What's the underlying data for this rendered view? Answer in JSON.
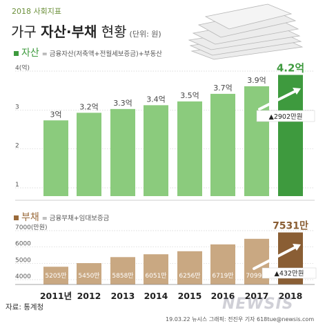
{
  "header": {
    "tag": "2018 사회지표",
    "title_prefix": "가구 ",
    "title_main": "자산·부채",
    "title_suffix": " 현황",
    "unit": "(단위: 원)"
  },
  "chart_data": [
    {
      "type": "bar",
      "section_label": "자산",
      "section_desc": "= 금융자산(저축액+전월세보증금)+부동산",
      "categories": [
        "2011년",
        "2012",
        "2013",
        "2014",
        "2015",
        "2016",
        "2017",
        "2018"
      ],
      "values": [
        3.0,
        3.2,
        3.3,
        3.4,
        3.5,
        3.7,
        3.9,
        4.2
      ],
      "labels": [
        "3억",
        "3.2억",
        "3.3억",
        "3.4억",
        "3.5억",
        "3.7억",
        "3.9억",
        "4.2억"
      ],
      "yticks": [
        "4(억)",
        "3",
        "2",
        "1"
      ],
      "ylim": [
        1,
        4.3
      ],
      "change_label": "▲2902만원",
      "colors": {
        "bar": "#8bcb7d",
        "highlight": "#3e9a3e",
        "label": "#444444",
        "highlight_label": "#3e9a3e"
      }
    },
    {
      "type": "bar",
      "section_label": "부채",
      "section_desc": "= 금융부채+임대보증금",
      "categories": [
        "2011년",
        "2012",
        "2013",
        "2014",
        "2015",
        "2016",
        "2017",
        "2018"
      ],
      "values": [
        5205,
        5450,
        5858,
        6051,
        6256,
        6719,
        7099,
        7531
      ],
      "labels": [
        "5205만",
        "5450만",
        "5858만",
        "6051만",
        "6256만",
        "6719만",
        "7099만",
        "7531만"
      ],
      "yticks": [
        "7000(만원)",
        "6000",
        "5000",
        "4000"
      ],
      "ylim": [
        4000,
        7700
      ],
      "change_label": "▲432만원",
      "colors": {
        "bar": "#c9a882",
        "highlight": "#8a5e34",
        "label": "#ffffff",
        "highlight_label": "#8a5e34"
      }
    }
  ],
  "footer": {
    "source": "자료: 통계청",
    "credit": "19.03.22 뉴시스 그래픽: 전진우 기자 618tue@newsis.com",
    "watermark": "NEWSIS"
  }
}
